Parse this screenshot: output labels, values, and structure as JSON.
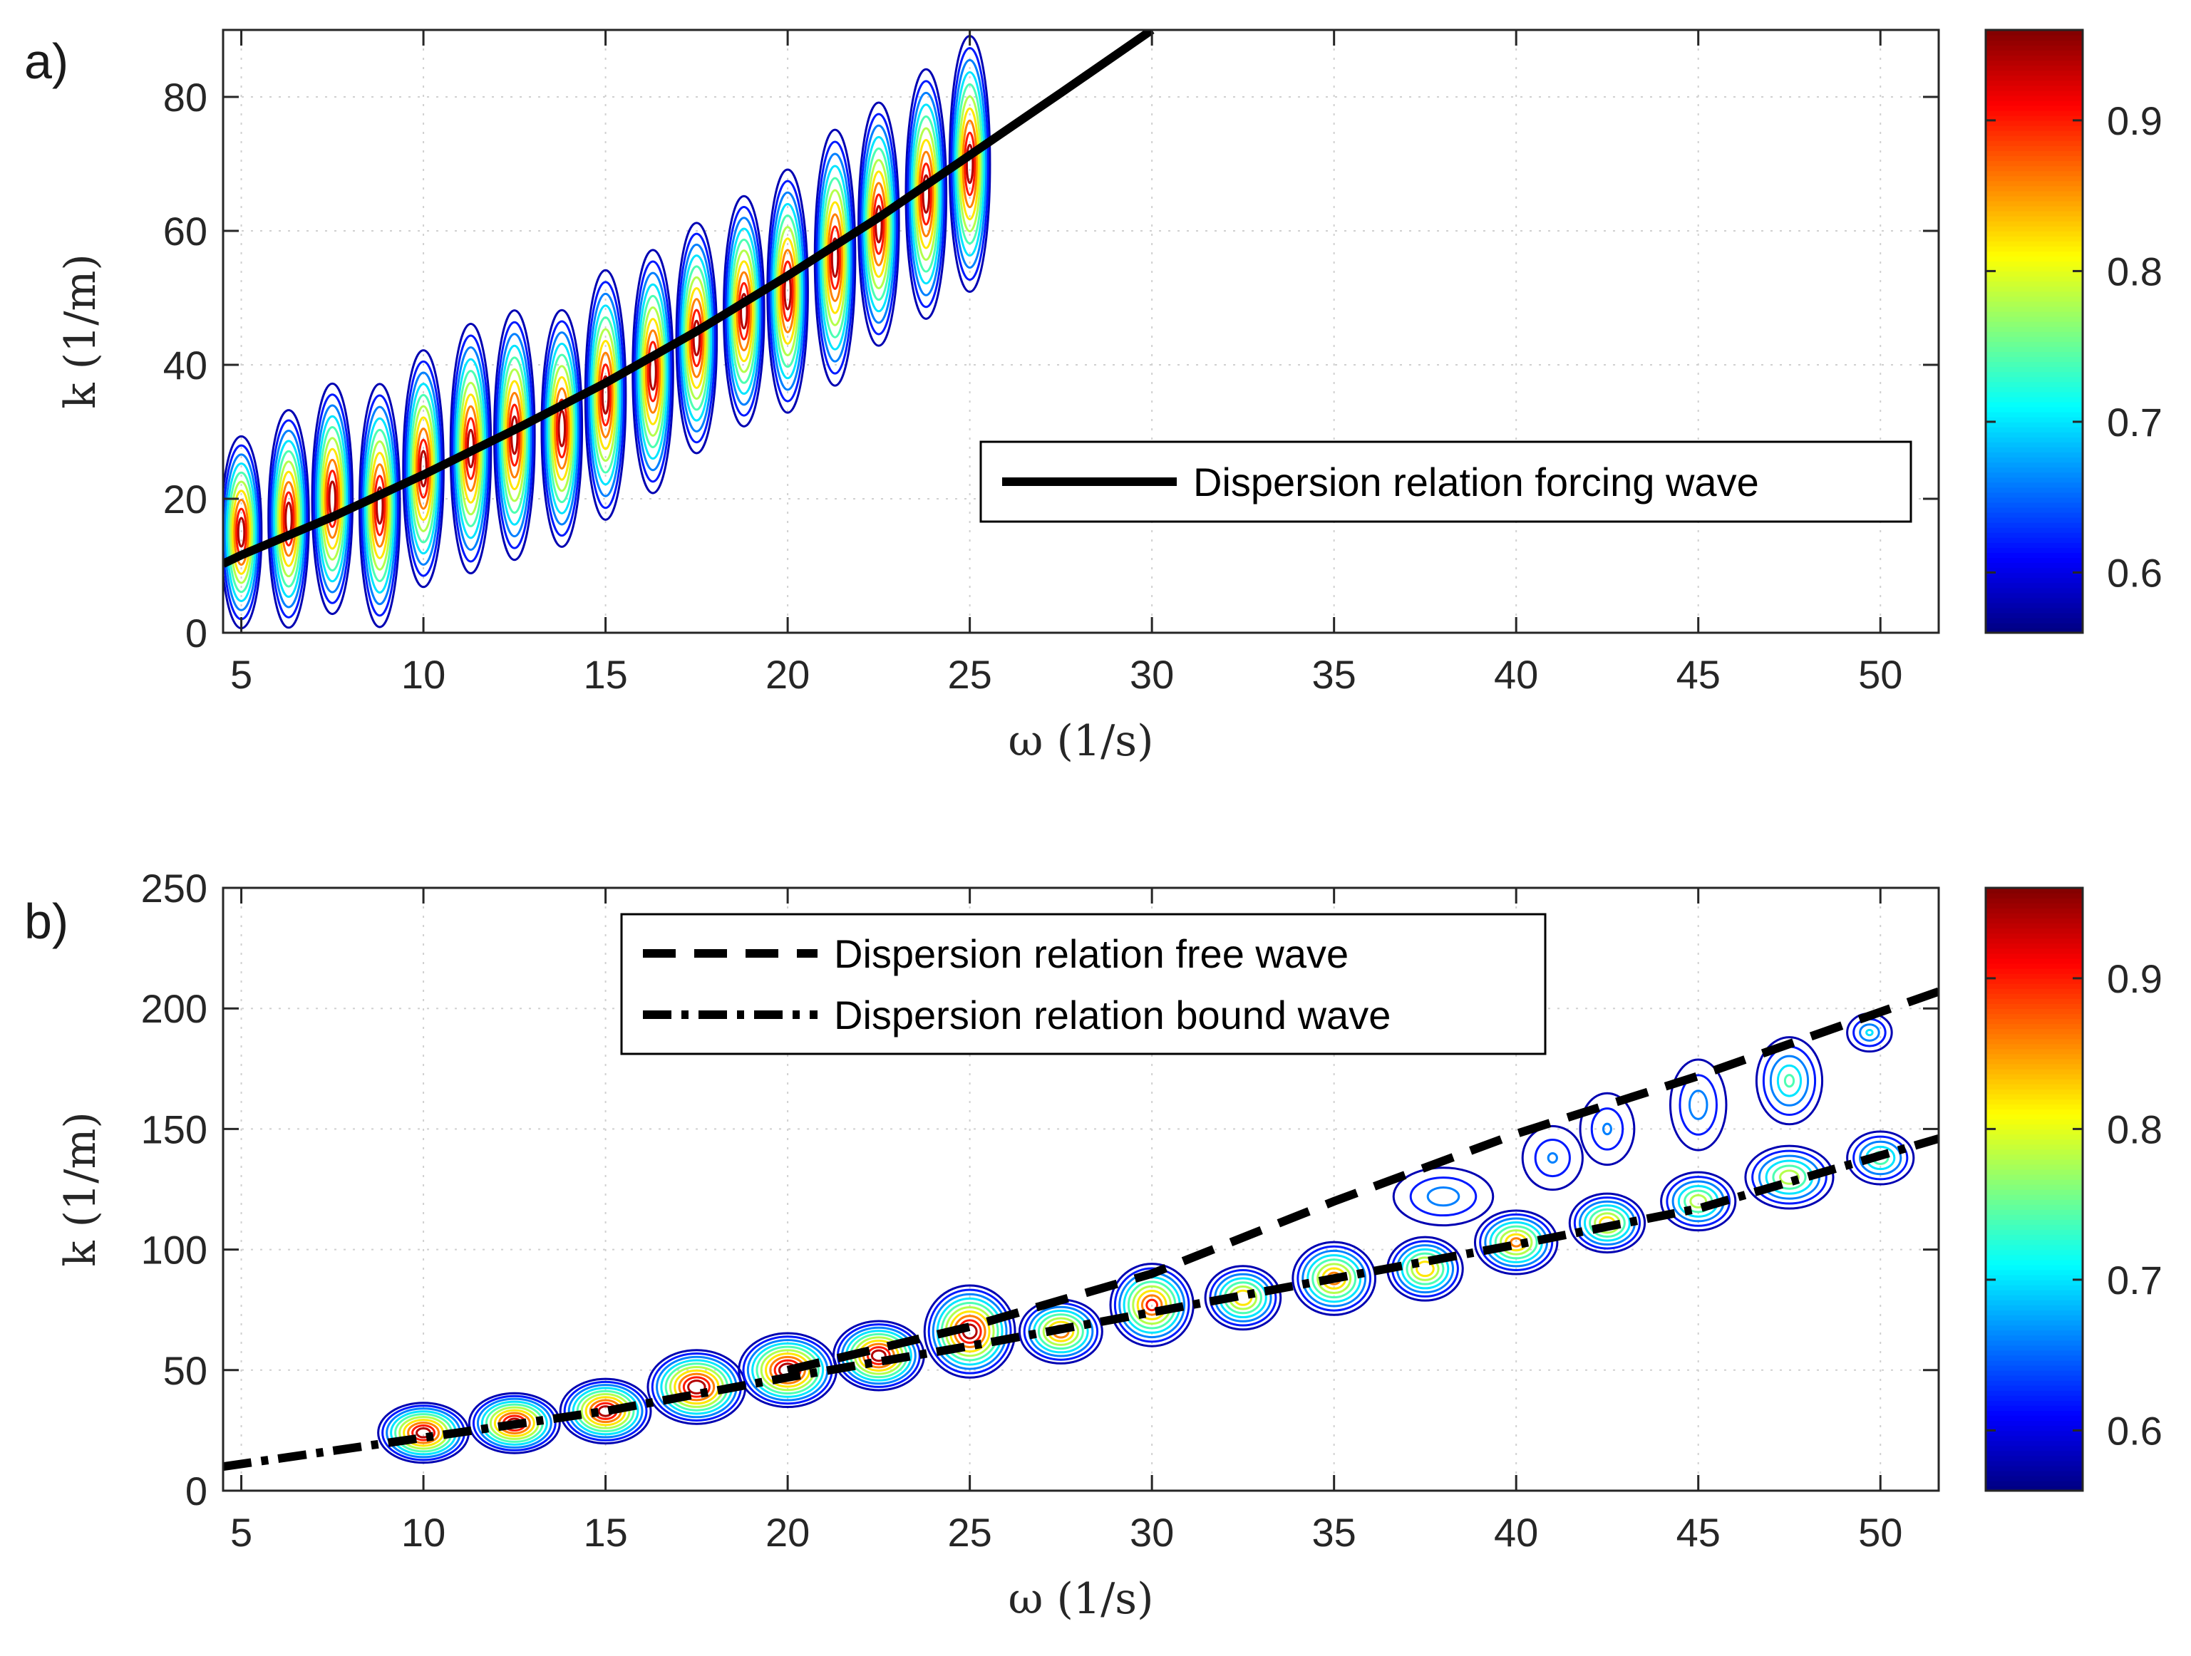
{
  "chart_data": [
    {
      "type": "contour",
      "panel_label": "a)",
      "xlabel": "ω (1/s)",
      "ylabel": "k (1/m)",
      "xlim": [
        4.5,
        51.6
      ],
      "ylim": [
        0,
        90
      ],
      "xticks": [
        "5",
        "10",
        "15",
        "20",
        "25",
        "30",
        "35",
        "40",
        "45",
        "50"
      ],
      "yticks": [
        "0",
        "20",
        "40",
        "60",
        "80"
      ],
      "grid": true,
      "legend": {
        "position": "right",
        "entries": [
          {
            "label": "Dispersion relation forcing wave",
            "style": "solid"
          }
        ]
      },
      "series": [
        {
          "name": "Dispersion relation forcing wave",
          "style": "solid",
          "x": [
            4.5,
            5,
            7.5,
            10,
            12.5,
            15,
            17.5,
            20,
            22.5,
            25,
            27.5,
            30
          ],
          "y": [
            10.3,
            11.6,
            17.3,
            23.6,
            30.3,
            37.3,
            45,
            53.3,
            62,
            71.3,
            80.6,
            90
          ]
        }
      ],
      "contour_peaks": [
        {
          "x": 5.0,
          "y": 14,
          "ymin": 0,
          "ymax": 30,
          "peak": 0.95
        },
        {
          "x": 6.3,
          "y": 16,
          "ymin": 0,
          "ymax": 34,
          "peak": 0.95
        },
        {
          "x": 7.5,
          "y": 18,
          "ymin": 2,
          "ymax": 38,
          "peak": 0.95
        },
        {
          "x": 8.8,
          "y": 20,
          "ymin": 0,
          "ymax": 38,
          "peak": 0.95
        },
        {
          "x": 10.0,
          "y": 24,
          "ymin": 6,
          "ymax": 43,
          "peak": 0.95
        },
        {
          "x": 11.3,
          "y": 26,
          "ymin": 8,
          "ymax": 47,
          "peak": 0.95
        },
        {
          "x": 12.5,
          "y": 28,
          "ymin": 10,
          "ymax": 49,
          "peak": 0.95
        },
        {
          "x": 13.8,
          "y": 31,
          "ymin": 12,
          "ymax": 49,
          "peak": 0.95
        },
        {
          "x": 15.0,
          "y": 36,
          "ymin": 16,
          "ymax": 55,
          "peak": 0.95
        },
        {
          "x": 16.3,
          "y": 38,
          "ymin": 20,
          "ymax": 58,
          "peak": 0.95
        },
        {
          "x": 17.5,
          "y": 42,
          "ymin": 26,
          "ymax": 62,
          "peak": 0.95
        },
        {
          "x": 18.8,
          "y": 46,
          "ymin": 30,
          "ymax": 66,
          "peak": 0.95
        },
        {
          "x": 20.0,
          "y": 50,
          "ymin": 32,
          "ymax": 70,
          "peak": 0.95
        },
        {
          "x": 21.3,
          "y": 56,
          "ymin": 36,
          "ymax": 76,
          "peak": 0.95
        },
        {
          "x": 22.5,
          "y": 60,
          "ymin": 42,
          "ymax": 80,
          "peak": 0.95
        },
        {
          "x": 23.8,
          "y": 65,
          "ymin": 46,
          "ymax": 85,
          "peak": 0.95
        },
        {
          "x": 25.0,
          "y": 70,
          "ymin": 50,
          "ymax": 90,
          "peak": 0.95
        }
      ],
      "colorbar": {
        "range": [
          0.56,
          0.96
        ],
        "ticks": [
          "0.6",
          "0.7",
          "0.8",
          "0.9"
        ],
        "colormap": "jet"
      }
    },
    {
      "type": "contour",
      "panel_label": "b)",
      "xlabel": "ω (1/s)",
      "ylabel": "k (1/m)",
      "xlim": [
        4.5,
        51.6
      ],
      "ylim": [
        0,
        250
      ],
      "xticks": [
        "5",
        "10",
        "15",
        "20",
        "25",
        "30",
        "35",
        "40",
        "45",
        "50"
      ],
      "yticks": [
        "0",
        "50",
        "100",
        "150",
        "200",
        "250"
      ],
      "grid": true,
      "legend": {
        "position": "top-center",
        "entries": [
          {
            "label": "Dispersion relation free wave",
            "style": "dashed"
          },
          {
            "label": "Dispersion relation bound wave",
            "style": "dashdot"
          }
        ]
      },
      "series": [
        {
          "name": "Dispersion relation free wave",
          "style": "dashed",
          "x": [
            20,
            25,
            30,
            35,
            40,
            45,
            51.6
          ],
          "y": [
            50,
            68,
            90,
            120,
            148,
            172,
            207
          ]
        },
        {
          "name": "Dispersion relation bound wave",
          "style": "dashdot",
          "x": [
            4.5,
            10,
            15,
            20,
            25,
            30,
            35,
            40,
            45,
            51.6
          ],
          "y": [
            10,
            22,
            33,
            47,
            60,
            74,
            88,
            102,
            117,
            146
          ]
        }
      ],
      "contour_peaks": [
        {
          "x": 10.0,
          "y": 24,
          "rx": 1.3,
          "ry": 13,
          "peak": 0.95
        },
        {
          "x": 12.5,
          "y": 28,
          "rx": 1.3,
          "ry": 13,
          "peak": 0.95
        },
        {
          "x": 15.0,
          "y": 33,
          "rx": 1.3,
          "ry": 14,
          "peak": 0.95
        },
        {
          "x": 17.5,
          "y": 43,
          "rx": 1.4,
          "ry": 16,
          "peak": 0.96
        },
        {
          "x": 20.0,
          "y": 50,
          "rx": 1.4,
          "ry": 16,
          "peak": 0.96
        },
        {
          "x": 22.5,
          "y": 56,
          "rx": 1.3,
          "ry": 15,
          "peak": 0.95
        },
        {
          "x": 25.0,
          "y": 66,
          "rx": 1.3,
          "ry": 20,
          "peak": 0.95
        },
        {
          "x": 27.5,
          "y": 66,
          "rx": 1.2,
          "ry": 14,
          "peak": 0.88
        },
        {
          "x": 30.0,
          "y": 77,
          "rx": 1.2,
          "ry": 18,
          "peak": 0.9
        },
        {
          "x": 32.5,
          "y": 80,
          "rx": 1.1,
          "ry": 14,
          "peak": 0.85
        },
        {
          "x": 35.0,
          "y": 88,
          "rx": 1.2,
          "ry": 16,
          "peak": 0.87
        },
        {
          "x": 37.5,
          "y": 92,
          "rx": 1.1,
          "ry": 14,
          "peak": 0.85
        },
        {
          "x": 40.0,
          "y": 103,
          "rx": 1.2,
          "ry": 14,
          "peak": 0.86
        },
        {
          "x": 42.5,
          "y": 111,
          "rx": 1.1,
          "ry": 13,
          "peak": 0.84
        },
        {
          "x": 45.0,
          "y": 120,
          "rx": 1.1,
          "ry": 13,
          "peak": 0.8
        },
        {
          "x": 47.5,
          "y": 130,
          "rx": 1.3,
          "ry": 14,
          "peak": 0.8
        },
        {
          "x": 50.0,
          "y": 138,
          "rx": 1.0,
          "ry": 12,
          "peak": 0.76
        },
        {
          "x": 38.0,
          "y": 122,
          "rx": 1.6,
          "ry": 14,
          "peak": 0.68
        },
        {
          "x": 41.0,
          "y": 138,
          "rx": 1.0,
          "ry": 16,
          "peak": 0.66
        },
        {
          "x": 42.5,
          "y": 150,
          "rx": 0.9,
          "ry": 18,
          "peak": 0.66
        },
        {
          "x": 45.0,
          "y": 160,
          "rx": 0.9,
          "ry": 22,
          "peak": 0.68
        },
        {
          "x": 47.5,
          "y": 170,
          "rx": 1.0,
          "ry": 20,
          "peak": 0.74
        },
        {
          "x": 49.7,
          "y": 190,
          "rx": 0.7,
          "ry": 9,
          "peak": 0.7
        }
      ],
      "colorbar": {
        "range": [
          0.56,
          0.96
        ],
        "ticks": [
          "0.6",
          "0.7",
          "0.8",
          "0.9"
        ],
        "colormap": "jet"
      }
    }
  ]
}
